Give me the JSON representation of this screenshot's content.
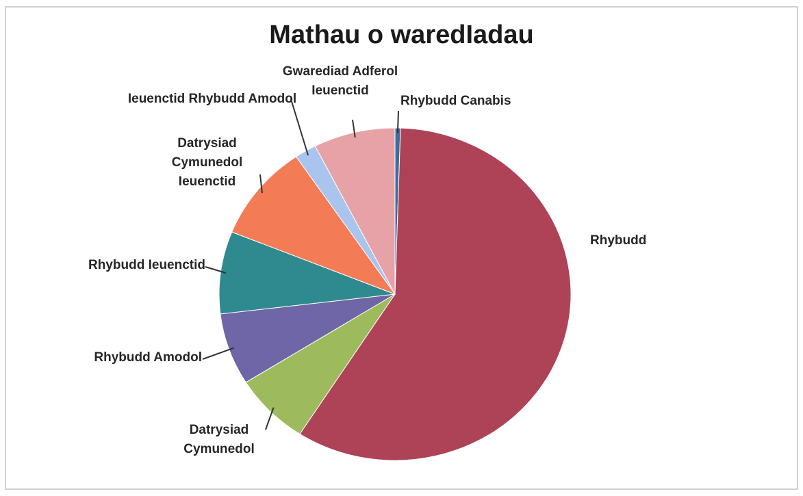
{
  "chart_data": {
    "type": "pie",
    "title": "Mathau o waredIadau",
    "categories": [
      "Rhybudd Canabis",
      "Rhybudd",
      "Datrysiad Cymunedol",
      "Rhybudd Amodol",
      "Rhybudd Ieuenctid",
      "Datrysiad Cymunedol Ieuenctid",
      "Ieuenctid Rhybudd Amodol",
      "Gwarediad Adferol Ieuenctid"
    ],
    "values": [
      0.5,
      58.6,
      7,
      7,
      8,
      9.4,
      2,
      7.5
    ],
    "colors": [
      "#3c6d9e",
      "#ae4257",
      "#9dbb5c",
      "#6e66a6",
      "#2f8a8f",
      "#f37c57",
      "#a9c5ee",
      "#e7a2a8"
    ]
  }
}
